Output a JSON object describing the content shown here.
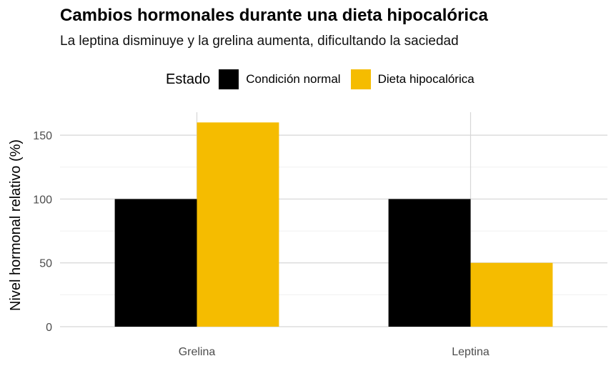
{
  "chart_data": {
    "type": "bar",
    "title": "Cambios hormonales durante una dieta hipocalórica",
    "subtitle": "La leptina disminuye y la grelina aumenta, dificultando la saciedad",
    "xlabel": "",
    "ylabel": "Nivel hormonal relativo (%)",
    "categories": [
      "Grelina",
      "Leptina"
    ],
    "series": [
      {
        "name": "Condición normal",
        "values": [
          100,
          100
        ],
        "color": "#000000"
      },
      {
        "name": "Dieta hipocalórica",
        "values": [
          160,
          50
        ],
        "color": "#F5BC00"
      }
    ],
    "yticks": [
      0,
      50,
      100,
      150
    ],
    "ylim": [
      0,
      168
    ],
    "legend": {
      "title": "Estado",
      "position": "top"
    },
    "grid": true
  }
}
